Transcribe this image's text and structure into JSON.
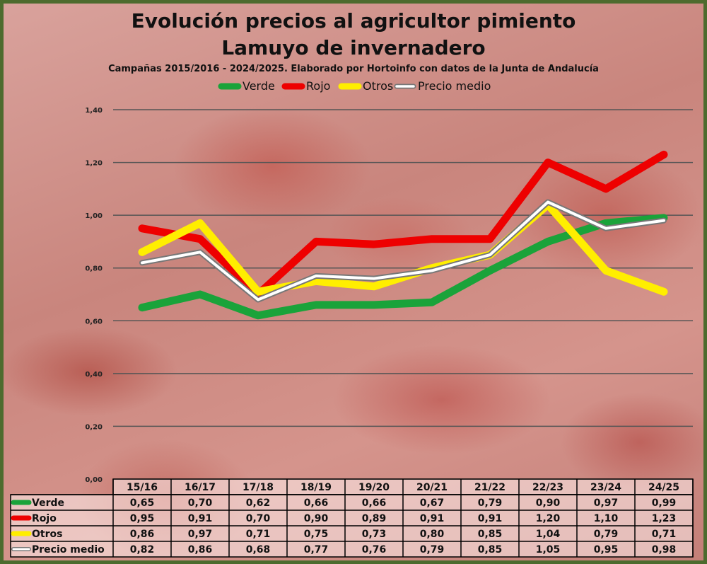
{
  "title_line1": "Evolución precios al agricultor pimiento",
  "title_line2": "Lamuyo de invernadero",
  "subtitle": "Campañas 2015/2016 - 2024/2025. Elaborado por Hortoinfo con datos de la Junta de Andalucía",
  "chart_data": {
    "type": "line",
    "title": "Evolución precios al agricultor pimiento Lamuyo de invernadero",
    "subtitle": "Campañas 2015/2016 - 2024/2025. Elaborado por Hortoinfo con datos de la Junta de Andalucía",
    "categories": [
      "15/16",
      "16/17",
      "17/18",
      "18/19",
      "19/20",
      "20/21",
      "21/22",
      "22/23",
      "23/24",
      "24/25"
    ],
    "ylim": [
      0,
      1.4
    ],
    "yticks": [
      "0,00",
      "0,20",
      "0,40",
      "0,60",
      "0,80",
      "1,00",
      "1,20",
      "1,40"
    ],
    "grid": true,
    "legend_position": "top",
    "data_table": true,
    "series": [
      {
        "name": "Verde",
        "color": "#1aa33a",
        "values": [
          0.65,
          0.7,
          0.62,
          0.66,
          0.66,
          0.67,
          0.79,
          0.9,
          0.97,
          0.99
        ],
        "labels": [
          "0,65",
          "0,70",
          "0,62",
          "0,66",
          "0,66",
          "0,67",
          "0,79",
          "0,90",
          "0,97",
          "0,99"
        ]
      },
      {
        "name": "Rojo",
        "color": "#ee0000",
        "values": [
          0.95,
          0.91,
          0.7,
          0.9,
          0.89,
          0.91,
          0.91,
          1.2,
          1.1,
          1.23
        ],
        "labels": [
          "0,95",
          "0,91",
          "0,70",
          "0,90",
          "0,89",
          "0,91",
          "0,91",
          "1,20",
          "1,10",
          "1,23"
        ]
      },
      {
        "name": "Otros",
        "color": "#ffee00",
        "values": [
          0.86,
          0.97,
          0.71,
          0.75,
          0.73,
          0.8,
          0.85,
          1.04,
          0.79,
          0.71
        ],
        "labels": [
          "0,86",
          "0,97",
          "0,71",
          "0,75",
          "0,73",
          "0,80",
          "0,85",
          "1,04",
          "0,79",
          "0,71"
        ]
      },
      {
        "name": "Precio medio",
        "color": "#ffffff",
        "values": [
          0.82,
          0.86,
          0.68,
          0.77,
          0.76,
          0.79,
          0.85,
          1.05,
          0.95,
          0.98
        ],
        "labels": [
          "0,82",
          "0,86",
          "0,68",
          "0,77",
          "0,76",
          "0,79",
          "0,85",
          "1,05",
          "0,95",
          "0,98"
        ]
      }
    ]
  }
}
